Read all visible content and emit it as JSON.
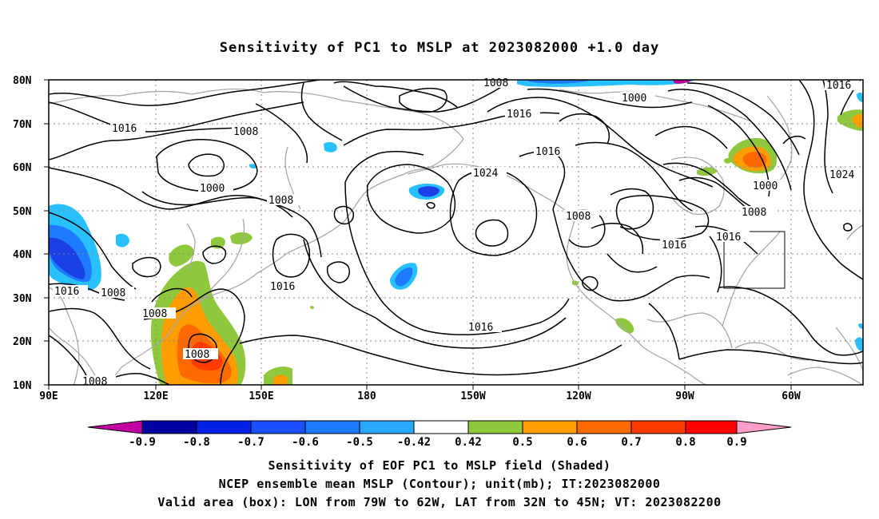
{
  "title": "Sensitivity of PC1 to MSLP at 2023082000 +1.0 day",
  "map": {
    "lon_range": [
      "90E",
      "310E"
    ],
    "lat_range": [
      10,
      80
    ],
    "lat_labels": [
      "80N",
      "70N",
      "60N",
      "50N",
      "40N",
      "30N",
      "20N",
      "10N"
    ],
    "lon_labels": [
      "90E",
      "120E",
      "150E",
      "180",
      "150W",
      "120W",
      "90W",
      "60W"
    ],
    "valid_box": {
      "lon_west": "79W",
      "lon_east": "62W",
      "lat_south": "32N",
      "lat_north": "45N"
    },
    "contour_labels": [
      "1008",
      "1016",
      "1008",
      "1000",
      "1008",
      "1008",
      "1016",
      "1016",
      "1024",
      "1016",
      "1008",
      "1016",
      "1016",
      "1000",
      "1008",
      "1016",
      "1000",
      "1008",
      "1016",
      "1024",
      "1016",
      "1008",
      "1008",
      "1008",
      "1016",
      "1008"
    ]
  },
  "colorbar": {
    "labels": [
      "-0.9",
      "-0.8",
      "-0.7",
      "-0.6",
      "-0.5",
      "-0.42",
      "0.42",
      "0.5",
      "0.6",
      "0.7",
      "0.8",
      "0.9"
    ],
    "colors": [
      "#c000a0",
      "#0000a0",
      "#0022e6",
      "#1a50ff",
      "#1e7bff",
      "#28a8ff",
      "#20d0ff",
      "#ffffff",
      "#8fc83c",
      "#ff9c00",
      "#ff6a00",
      "#ff3c00",
      "#ff0000",
      "#ff9ec8"
    ]
  },
  "shading_colors": {
    "neg_light": "#28c0ff",
    "neg_mid": "#1e7bff",
    "neg_dark": "#1a40e6",
    "pos_green": "#8fc83c",
    "pos_orange": "#ff9c00",
    "pos_dark_orange": "#ff6a00",
    "pos_red": "#ff3c00"
  },
  "captions": {
    "line1": "Sensitivity of EOF PC1 to MSLP field (Shaded)",
    "line2": "NCEP ensemble mean MSLP (Contour); unit(mb); IT:2023082000",
    "line3": "Valid area (box): LON from 79W to 62W, LAT from 32N to 45N; VT: 2023082200"
  }
}
